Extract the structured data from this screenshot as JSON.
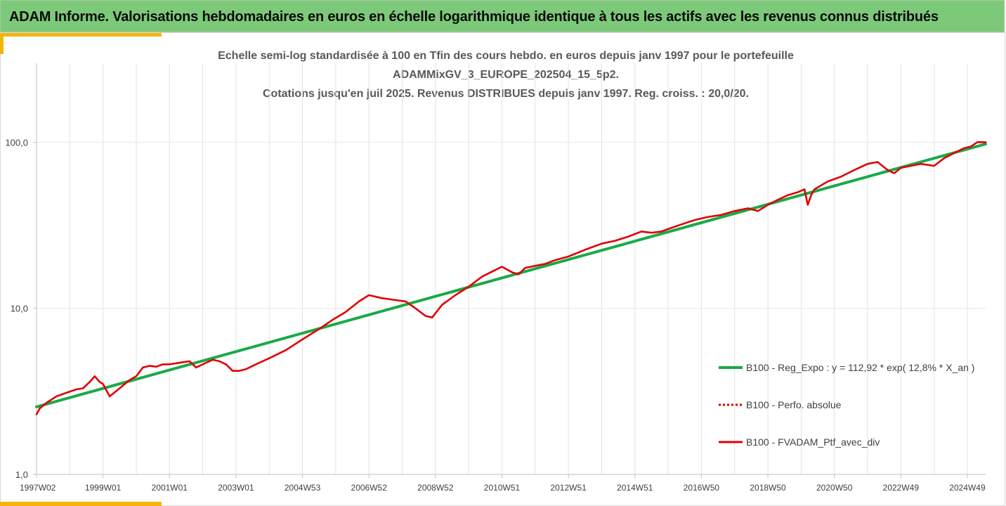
{
  "header": {
    "title": "ADAM Informe. Valorisations hebdomadaires en euros en échelle logarithmique identique à tous les actifs avec les revenus connus distribués"
  },
  "colors": {
    "banner": "#7dc97a",
    "accent": "#f2b705",
    "regression": "#1aaa48",
    "portfolio": "#e00000"
  },
  "chart_data": {
    "type": "line",
    "title_lines": [
      "Echelle semi-log standardisée à 100 en Tfin des cours hebdo.  en euros depuis janv 1997 pour le portefeuille",
      "ADAMMixGV_3_EUROPE_202504_15_5p2.",
      "Cotations  jusqu'en juil 2025. Revenus DISTRIBUES depuis janv 1997. Reg. croiss. : 20,0/20."
    ],
    "y_scale": "log",
    "ylim": [
      1,
      180
    ],
    "y_ticks": [
      {
        "value": 1,
        "label": "1,0"
      },
      {
        "value": 10,
        "label": "10,0"
      },
      {
        "value": 100,
        "label": "100,0"
      }
    ],
    "xlim": [
      1997.0,
      2025.55
    ],
    "x_ticks": [
      {
        "value": 1997.0,
        "label": "1997W02"
      },
      {
        "value": 1999.0,
        "label": "1999W01"
      },
      {
        "value": 2001.0,
        "label": "2001W01"
      },
      {
        "value": 2003.0,
        "label": "2003W01"
      },
      {
        "value": 2005.0,
        "label": "2004W53"
      },
      {
        "value": 2007.0,
        "label": "2006W52"
      },
      {
        "value": 2009.0,
        "label": "2008W52"
      },
      {
        "value": 2011.0,
        "label": "2010W51"
      },
      {
        "value": 2013.0,
        "label": "2012W51"
      },
      {
        "value": 2015.0,
        "label": "2014W51"
      },
      {
        "value": 2017.0,
        "label": "2016W50"
      },
      {
        "value": 2019.0,
        "label": "2018W50"
      },
      {
        "value": 2021.0,
        "label": "2020W50"
      },
      {
        "value": 2023.0,
        "label": "2022W49"
      },
      {
        "value": 2025.0,
        "label": "2024W49"
      }
    ],
    "grid": "vertical",
    "legend_position": "right",
    "series": [
      {
        "name": "B100 - Reg_Expo : y = 112,92 * exp( 12,8% *  X_an )",
        "color": "#1aaa48",
        "style": "solid",
        "x": [
          1997.0,
          2025.55
        ],
        "y": [
          2.55,
          97.5
        ]
      },
      {
        "name": "B100 - Perfo. absolue",
        "color": "#e00000",
        "style": "dotted",
        "x": [],
        "y": []
      },
      {
        "name": "B100 - FVADAM_Ptf_avec_div",
        "color": "#e00000",
        "style": "solid",
        "x": [
          1997.0,
          1997.1,
          1997.3,
          1997.6,
          1997.9,
          1998.2,
          1998.4,
          1998.6,
          1998.75,
          1998.9,
          1999.0,
          1999.2,
          1999.5,
          1999.8,
          2000.0,
          2000.2,
          2000.4,
          2000.6,
          2000.8,
          2001.0,
          2001.3,
          2001.6,
          2001.8,
          2002.1,
          2002.3,
          2002.5,
          2002.7,
          2002.9,
          2003.1,
          2003.3,
          2003.6,
          2004.0,
          2004.5,
          2005.0,
          2005.5,
          2005.9,
          2006.3,
          2006.7,
          2007.0,
          2007.4,
          2007.8,
          2008.1,
          2008.4,
          2008.7,
          2008.9,
          2009.2,
          2009.6,
          2010.0,
          2010.4,
          2010.8,
          2011.0,
          2011.3,
          2011.5,
          2011.7,
          2012.0,
          2012.3,
          2012.6,
          2013.0,
          2013.5,
          2014.0,
          2014.4,
          2014.8,
          2015.0,
          2015.2,
          2015.5,
          2015.8,
          2016.0,
          2016.4,
          2016.8,
          2017.2,
          2017.6,
          2018.0,
          2018.4,
          2018.7,
          2019.0,
          2019.3,
          2019.6,
          2019.9,
          2020.1,
          2020.2,
          2020.3,
          2020.4,
          2020.6,
          2020.8,
          2021.2,
          2021.6,
          2022.0,
          2022.3,
          2022.6,
          2022.8,
          2023.0,
          2023.3,
          2023.6,
          2024.0,
          2024.3,
          2024.6,
          2024.9,
          2025.1,
          2025.3,
          2025.55
        ],
        "y": [
          2.3,
          2.5,
          2.7,
          2.95,
          3.1,
          3.25,
          3.3,
          3.6,
          3.9,
          3.6,
          3.5,
          2.95,
          3.3,
          3.7,
          3.9,
          4.4,
          4.5,
          4.45,
          4.6,
          4.6,
          4.7,
          4.8,
          4.4,
          4.7,
          4.9,
          4.8,
          4.6,
          4.2,
          4.2,
          4.3,
          4.6,
          5.0,
          5.6,
          6.5,
          7.5,
          8.5,
          9.5,
          11.0,
          12.0,
          11.5,
          11.2,
          11.0,
          10.0,
          9.0,
          8.8,
          10.5,
          12.0,
          13.5,
          15.5,
          17.0,
          17.8,
          16.5,
          16.0,
          17.5,
          18.0,
          18.5,
          19.5,
          20.5,
          22.5,
          24.5,
          25.5,
          27.0,
          28.0,
          29.0,
          28.5,
          29.0,
          30.0,
          32.0,
          34.0,
          35.5,
          36.5,
          38.5,
          40.0,
          38.5,
          42.0,
          45.0,
          48.0,
          50.0,
          52.0,
          42.0,
          48.0,
          52.0,
          55.0,
          58.0,
          62.0,
          68.0,
          74.0,
          76.0,
          68.0,
          65.0,
          70.0,
          72.0,
          74.0,
          72.0,
          80.0,
          86.0,
          92.0,
          94.0,
          100.0,
          100.0
        ]
      }
    ]
  }
}
